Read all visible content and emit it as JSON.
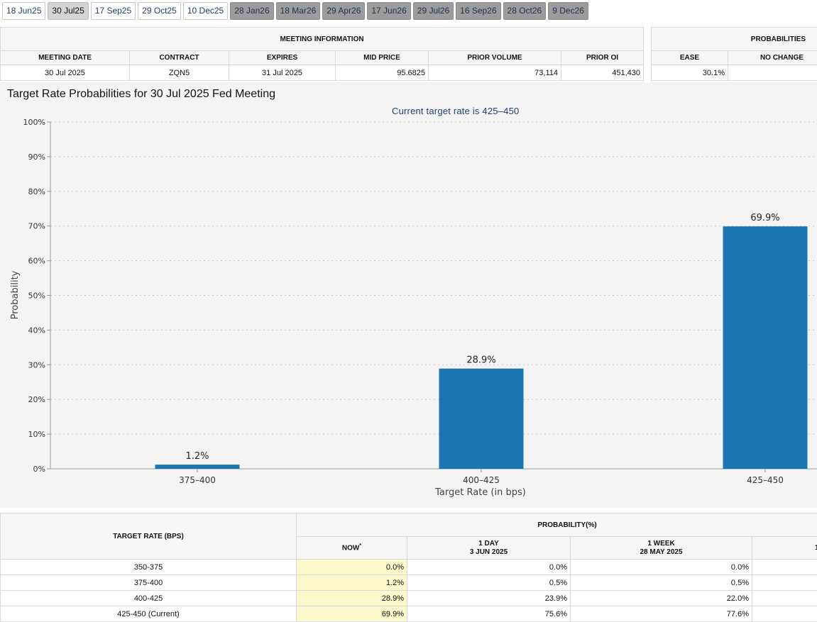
{
  "tabs": [
    {
      "label": "18 Jun25",
      "state": "normal"
    },
    {
      "label": "30 Jul25",
      "state": "active"
    },
    {
      "label": "17 Sep25",
      "state": "normal"
    },
    {
      "label": "29 Oct25",
      "state": "normal"
    },
    {
      "label": "10 Dec25",
      "state": "normal"
    },
    {
      "label": "28 Jan26",
      "state": "disabled"
    },
    {
      "label": "18 Mar26",
      "state": "disabled"
    },
    {
      "label": "29 Apr26",
      "state": "disabled"
    },
    {
      "label": "17 Jun26",
      "state": "disabled"
    },
    {
      "label": "29 Jul26",
      "state": "disabled"
    },
    {
      "label": "16 Sep26",
      "state": "disabled"
    },
    {
      "label": "28 Oct26",
      "state": "disabled"
    },
    {
      "label": "9 Dec26",
      "state": "disabled"
    }
  ],
  "meeting_info": {
    "title": "MEETING INFORMATION",
    "headers": [
      "MEETING DATE",
      "CONTRACT",
      "EXPIRES",
      "MID PRICE",
      "PRIOR VOLUME",
      "PRIOR OI"
    ],
    "row": [
      "30 Jul 2025",
      "ZQN5",
      "31 Jul 2025",
      "95.6825",
      "73,114",
      "451,430"
    ]
  },
  "probabilities": {
    "title": "PROBABILITIES",
    "headers": [
      "EASE",
      "NO CHANGE"
    ],
    "row": [
      "30.1%",
      ""
    ]
  },
  "chart_title": "Target Rate Probabilities for 30 Jul 2025 Fed Meeting",
  "chart_subtitle": "Current target rate is 425–450",
  "chart_data": {
    "type": "bar",
    "categories": [
      "375–400",
      "400–425",
      "425–450"
    ],
    "values": [
      1.2,
      28.9,
      69.9
    ],
    "data_labels": [
      "1.2%",
      "28.9%",
      "69.9%"
    ],
    "xlabel": "Target Rate (in bps)",
    "ylabel": "Probability",
    "ylim": [
      0,
      100
    ],
    "yticks": [
      0,
      10,
      20,
      30,
      40,
      50,
      60,
      70,
      80,
      90,
      100
    ],
    "ytick_labels": [
      "0%",
      "10%",
      "20%",
      "30%",
      "40%",
      "50%",
      "60%",
      "70%",
      "80%",
      "90%",
      "100%"
    ],
    "grid": true,
    "bar_color": "#1b75b1"
  },
  "rates_table": {
    "target_rate_header": "TARGET RATE (BPS)",
    "probability_header": "PROBABILITY(%)",
    "now_header": "NOW",
    "now_marker": "*",
    "col_1day": {
      "line1": "1 DAY",
      "line2": "3 JUN 2025"
    },
    "col_1week": {
      "line1": "1 WEEK",
      "line2": "28 MAY 2025"
    },
    "col_4th_partial": "1",
    "rows": [
      {
        "rate": "350-375",
        "now": "0.0%",
        "day": "0.0%",
        "week": "0.0%"
      },
      {
        "rate": "375-400",
        "now": "1.2%",
        "day": "0.5%",
        "week": "0.5%"
      },
      {
        "rate": "400-425",
        "now": "28.9%",
        "day": "23.9%",
        "week": "22.0%"
      },
      {
        "rate": "425-450 (Current)",
        "now": "69.9%",
        "day": "75.6%",
        "week": "77.6%"
      }
    ]
  },
  "colors": {
    "accent_text": "#1d3f72",
    "now_highlight": "#fbf8cc",
    "chart_background": "#f4f4f4"
  }
}
